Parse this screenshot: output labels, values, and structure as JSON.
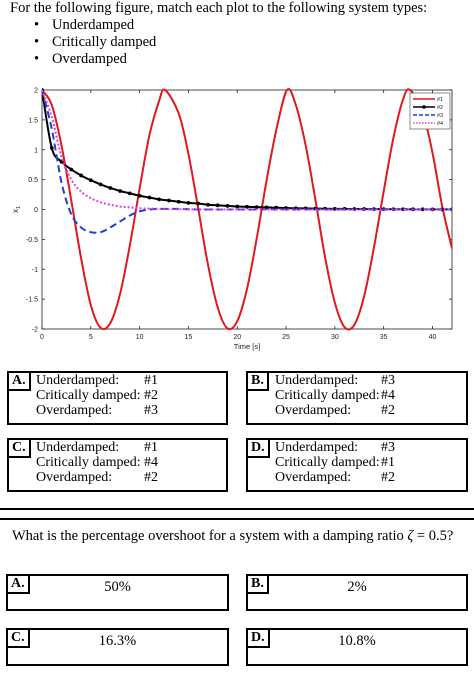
{
  "question1": {
    "prompt": "For the following figure, match each plot to the following system types:",
    "bullets": [
      "Underdamped",
      "Critically damped",
      "Overdamped"
    ]
  },
  "chart_data": {
    "type": "line",
    "title": "",
    "xlabel": "Time [s]",
    "ylabel": "x",
    "ylabel_subscript": "1",
    "xlim": [
      0,
      42
    ],
    "ylim": [
      -2,
      2
    ],
    "xticks": [
      0,
      5,
      10,
      15,
      20,
      25,
      30,
      35,
      40
    ],
    "xtick_labels": [
      "0",
      "5",
      "10",
      "15",
      "20",
      "25",
      "30",
      "35",
      "40"
    ],
    "yticks": [
      -2,
      -1.5,
      -1,
      -0.5,
      0,
      0.5,
      1,
      1.5,
      2
    ],
    "ytick_labels": [
      "-2",
      "-1.5",
      "-1",
      "-0.5",
      "0",
      "0.5",
      "1",
      "1.5",
      "2"
    ],
    "grid": false,
    "legend_position": "top-right",
    "series": [
      {
        "name": "#1",
        "color": "#e0191c",
        "style": "solid",
        "x": [
          0,
          1,
          2,
          3,
          4,
          5,
          6,
          7,
          8,
          9,
          10,
          11,
          12,
          12.6,
          14,
          15,
          16,
          17,
          18,
          19,
          20,
          21,
          22,
          23,
          24,
          25.1,
          26,
          27,
          28,
          29,
          30,
          31,
          32,
          33,
          34,
          35,
          36,
          37,
          37.7,
          39,
          40,
          41,
          42
        ],
        "y": [
          2,
          1.75,
          1.07,
          0.15,
          -0.81,
          -1.6,
          -1.98,
          -1.9,
          -1.41,
          -0.6,
          0.35,
          1.24,
          1.82,
          2,
          1.61,
          0.93,
          0.02,
          -0.92,
          -1.64,
          -1.99,
          -1.87,
          -1.33,
          -0.48,
          0.48,
          1.33,
          2,
          1.75,
          1.08,
          0.17,
          -0.8,
          -1.56,
          -1.97,
          -1.93,
          -1.45,
          -0.64,
          0.3,
          1.2,
          1.85,
          2,
          1.62,
          0.95,
          0.05,
          -0.65
        ]
      },
      {
        "name": "#2",
        "color": "#000000",
        "style": "solid-dot",
        "x": [
          0,
          1,
          2,
          3,
          4,
          5,
          6,
          7,
          8,
          9,
          10,
          11,
          12,
          13,
          14,
          15,
          16,
          17,
          18,
          19,
          20,
          21,
          22,
          23,
          24,
          25,
          26,
          27,
          28,
          29,
          30,
          31,
          32,
          33,
          34,
          35,
          36,
          37,
          38,
          39,
          40,
          41,
          42
        ],
        "y": [
          2,
          1.03,
          0.8,
          0.67,
          0.57,
          0.49,
          0.42,
          0.36,
          0.31,
          0.27,
          0.23,
          0.2,
          0.17,
          0.15,
          0.13,
          0.11,
          0.1,
          0.08,
          0.07,
          0.06,
          0.05,
          0.045,
          0.04,
          0.035,
          0.03,
          0.025,
          0.02,
          0.018,
          0.015,
          0.013,
          0.011,
          0.01,
          0.008,
          0.007,
          0.006,
          0.005,
          0.004,
          0.004,
          0.003,
          0.003,
          0.002,
          0.002,
          0.002
        ]
      },
      {
        "name": "#3",
        "color": "#1f3fd6",
        "style": "dashed",
        "x": [
          0,
          1,
          2,
          3,
          4,
          5,
          6,
          7,
          8,
          9,
          10,
          11,
          12,
          14,
          16,
          18,
          20,
          22,
          25,
          30,
          35,
          40,
          42
        ],
        "y": [
          2,
          1.35,
          0.45,
          -0.08,
          -0.3,
          -0.38,
          -0.38,
          -0.3,
          -0.2,
          -0.1,
          -0.03,
          0,
          0.01,
          0.01,
          0,
          0,
          0,
          0,
          0,
          0,
          0,
          0,
          0
        ]
      },
      {
        "name": "#4",
        "color": "#e040e0",
        "style": "dotted",
        "x": [
          0,
          1,
          2,
          3,
          4,
          5,
          6,
          7,
          8,
          9,
          10,
          11,
          12,
          13,
          14,
          15,
          16,
          18,
          20,
          22,
          25,
          30,
          35,
          40,
          42
        ],
        "y": [
          2,
          1.55,
          0.88,
          0.5,
          0.3,
          0.19,
          0.12,
          0.08,
          0.05,
          0.035,
          0.02,
          0.015,
          0.01,
          0.006,
          0.004,
          0.003,
          0.002,
          0.001,
          0,
          0,
          0,
          0,
          0,
          0,
          0
        ]
      }
    ]
  },
  "matching_choices": [
    {
      "letter": "A.",
      "rows": [
        {
          "label": "Underdamped:",
          "value": "#1"
        },
        {
          "label": "Critically damped:",
          "value": "#2"
        },
        {
          "label": "Overdamped:",
          "value": "#3"
        }
      ]
    },
    {
      "letter": "B.",
      "rows": [
        {
          "label": "Underdamped:",
          "value": "#3"
        },
        {
          "label": "Critically damped:",
          "value": "#4"
        },
        {
          "label": "Overdamped:",
          "value": "#2"
        }
      ]
    },
    {
      "letter": "C.",
      "rows": [
        {
          "label": "Underdamped:",
          "value": "#1"
        },
        {
          "label": "Critically damped:",
          "value": "#4"
        },
        {
          "label": "Overdamped:",
          "value": "#2"
        }
      ]
    },
    {
      "letter": "D.",
      "rows": [
        {
          "label": "Underdamped:",
          "value": "#3"
        },
        {
          "label": "Critically damped:",
          "value": "#1"
        },
        {
          "label": "Overdamped:",
          "value": "#2"
        }
      ]
    }
  ],
  "question2": {
    "prompt_prefix": "What is the percentage overshoot for a system with a damping ratio",
    "zeta_symbol": "ζ",
    "prompt_suffix": "= 0.5?",
    "choices": [
      {
        "letter": "A.",
        "answer": "50%"
      },
      {
        "letter": "B.",
        "answer": "2%"
      },
      {
        "letter": "C.",
        "answer": "16.3%"
      },
      {
        "letter": "D.",
        "answer": "10.8%"
      }
    ]
  }
}
